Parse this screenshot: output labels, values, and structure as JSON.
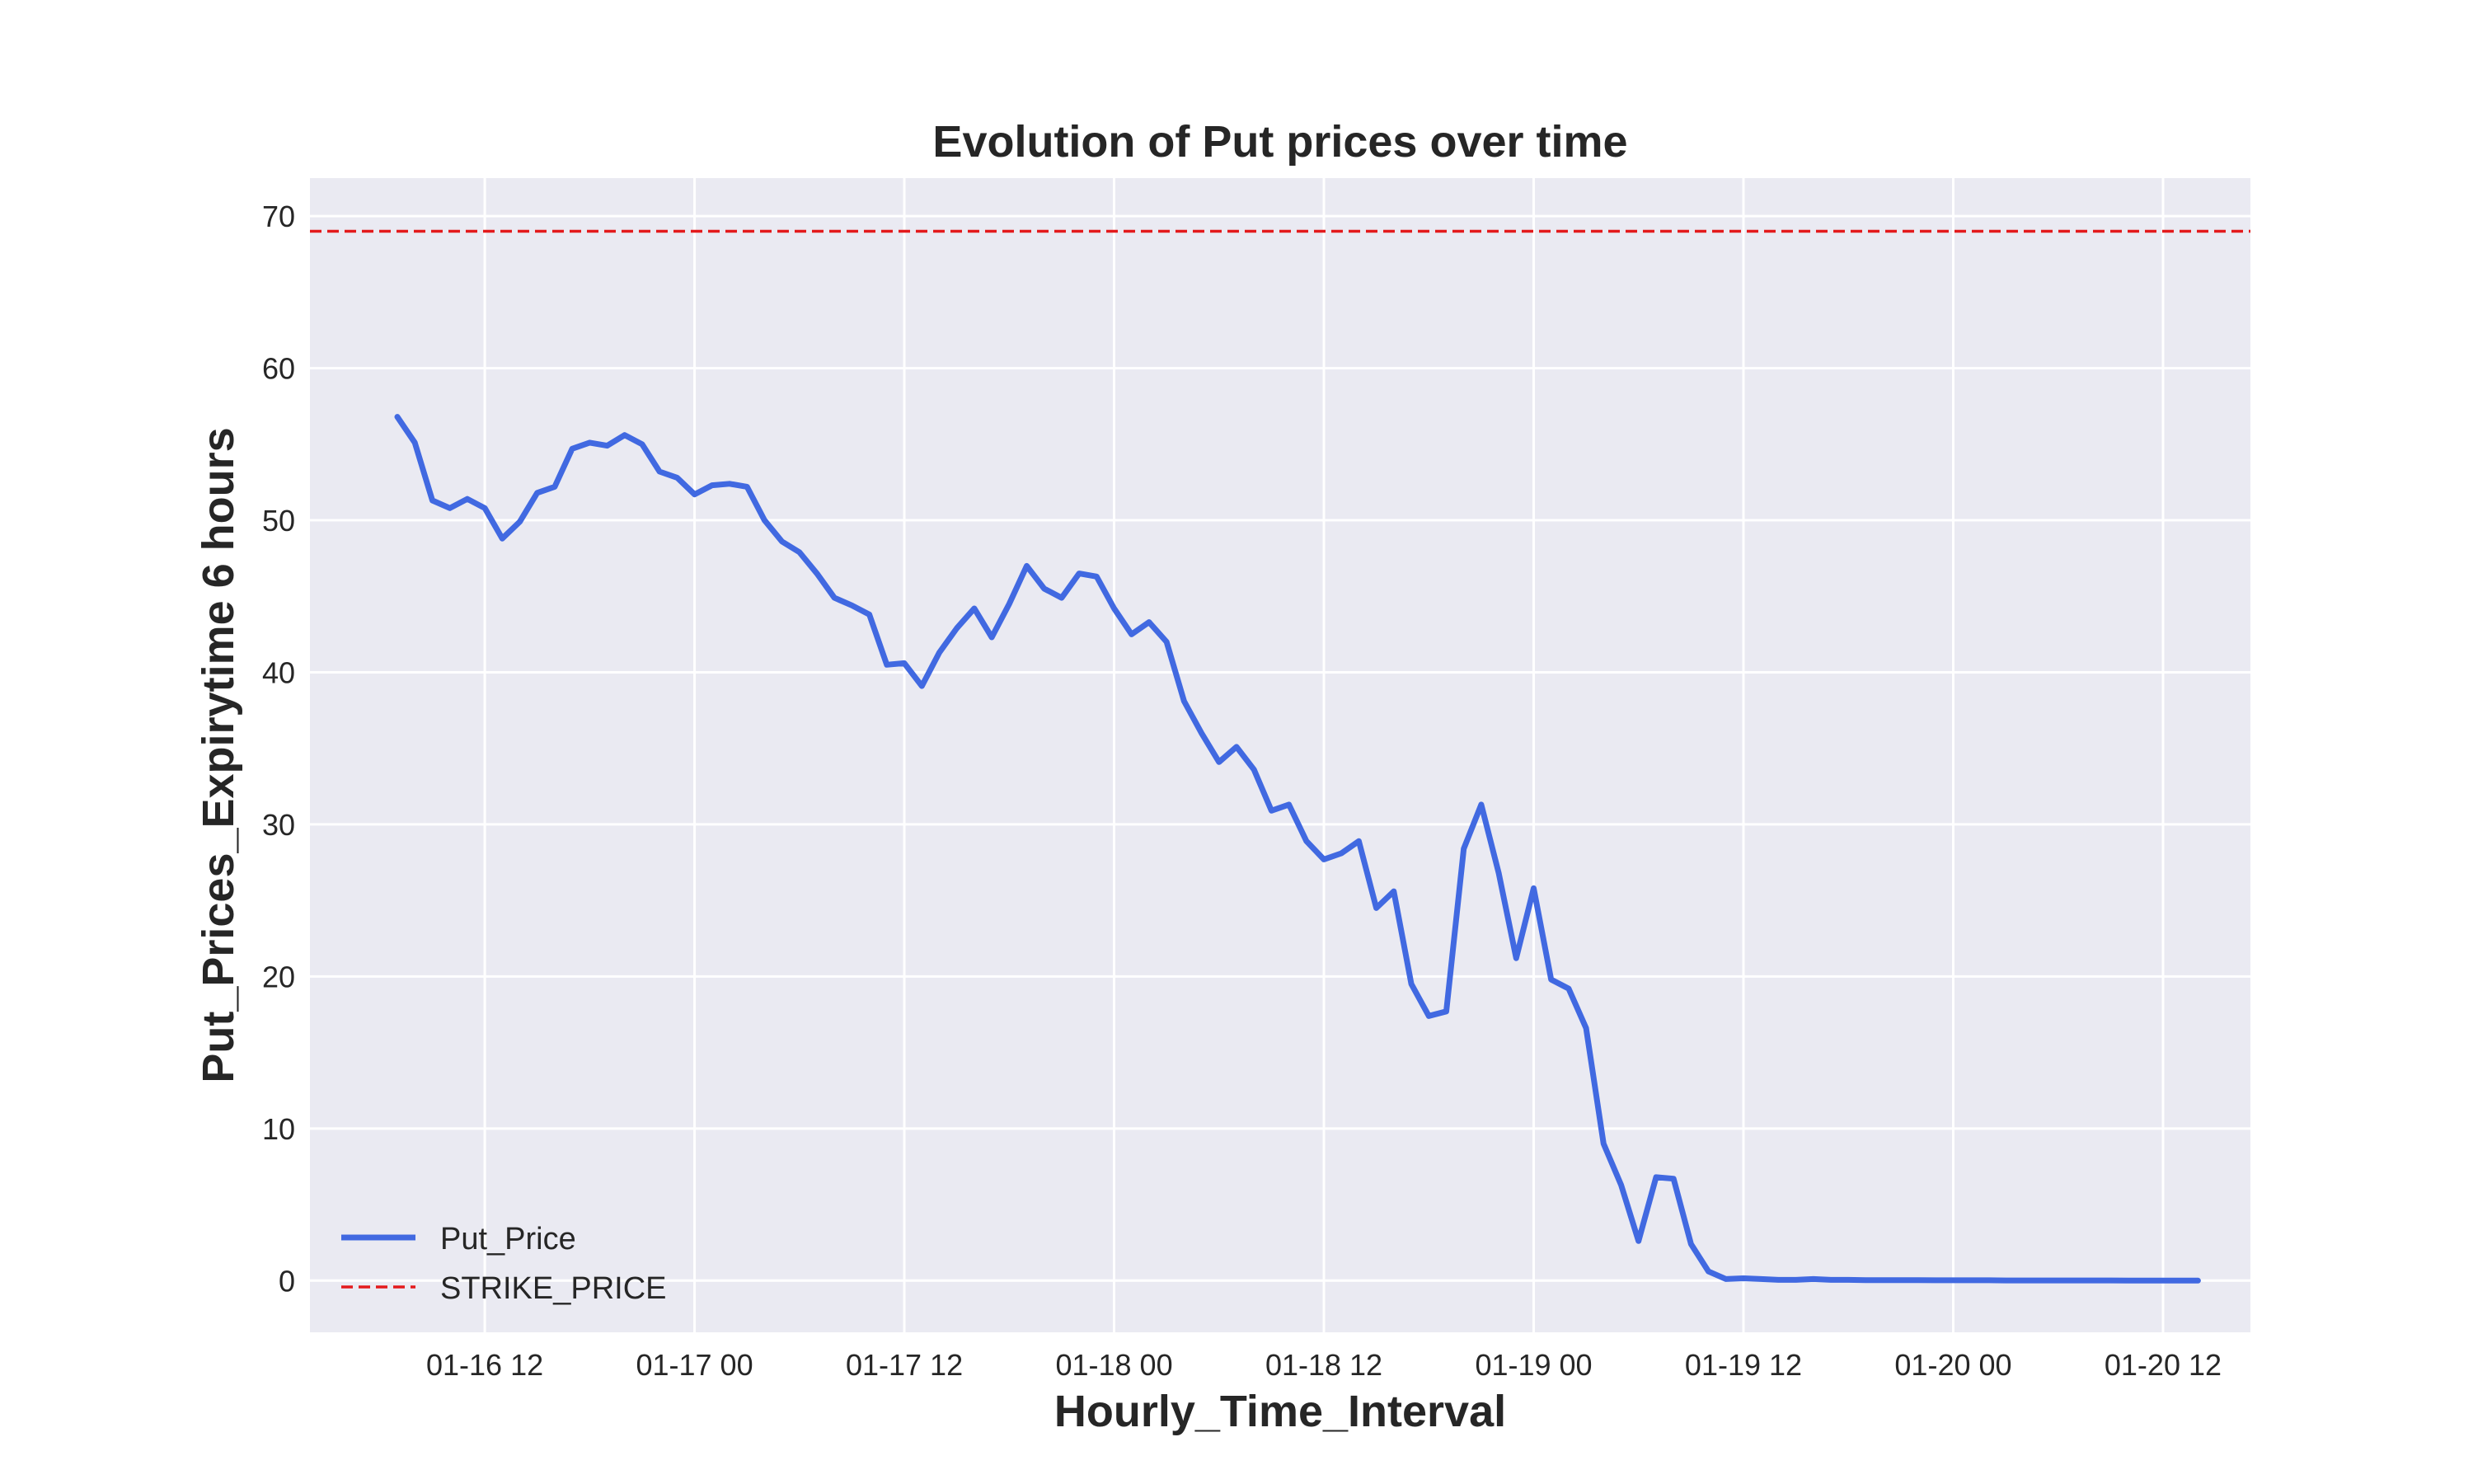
{
  "chart_data": {
    "type": "line",
    "title": "Evolution of Put prices over time",
    "xlabel": "Hourly_Time_Interval",
    "ylabel": "Put_Prices_Expirytime 6 hours",
    "x_tick_labels": [
      "01-16 12",
      "01-17 00",
      "01-17 12",
      "01-18 00",
      "01-18 12",
      "01-19 00",
      "01-19 12",
      "01-20 00",
      "01-20 12"
    ],
    "x_tick_hours": [
      12,
      24,
      36,
      48,
      60,
      72,
      84,
      96,
      108
    ],
    "xlim_hours": [
      2.0,
      113.0
    ],
    "y_ticks": [
      0,
      10,
      20,
      30,
      40,
      50,
      60,
      70
    ],
    "ylim": [
      -3.4,
      72.5
    ],
    "grid": true,
    "legend_position": "lower-left",
    "colors": {
      "put_price": "#4169e1",
      "strike_price": "#e31a1c",
      "plot_bg": "#eaeaf2",
      "grid": "#ffffff"
    },
    "x_hours": [
      7,
      8,
      9,
      10,
      11,
      12,
      13,
      14,
      15,
      16,
      17,
      18,
      19,
      20,
      21,
      22,
      23,
      24,
      25,
      26,
      27,
      28,
      29,
      30,
      31,
      32,
      33,
      34,
      35,
      36,
      37,
      38,
      39,
      40,
      41,
      42,
      43,
      44,
      45,
      46,
      47,
      48,
      49,
      50,
      51,
      52,
      53,
      54,
      55,
      56,
      57,
      58,
      59,
      60,
      61,
      62,
      63,
      64,
      65,
      66,
      67,
      68,
      69,
      70,
      71,
      72,
      73,
      74,
      75,
      76,
      77,
      78,
      79,
      80,
      81,
      82,
      83,
      84,
      85,
      86,
      87,
      88,
      89,
      90,
      91,
      92,
      93,
      94,
      95,
      96,
      97,
      98,
      99,
      100,
      101,
      102,
      103,
      104,
      105,
      106,
      107,
      108,
      109,
      110
    ],
    "series": [
      {
        "name": "Put_Price",
        "style": "solid",
        "values": [
          56.8,
          55.1,
          51.3,
          50.8,
          51.4,
          50.8,
          48.8,
          49.9,
          51.8,
          52.2,
          54.7,
          55.1,
          54.9,
          55.6,
          55.0,
          53.2,
          52.8,
          51.7,
          52.3,
          52.4,
          52.2,
          50.0,
          48.6,
          47.9,
          46.5,
          44.9,
          44.4,
          43.8,
          40.5,
          40.6,
          39.1,
          41.3,
          42.9,
          44.2,
          42.3,
          44.5,
          47.0,
          45.5,
          44.9,
          46.5,
          46.3,
          44.2,
          42.5,
          43.3,
          42.0,
          38.1,
          36.0,
          34.1,
          35.1,
          33.6,
          30.9,
          31.3,
          28.9,
          27.7,
          28.1,
          28.9,
          24.5,
          25.6,
          19.5,
          17.4,
          17.7,
          28.4,
          31.3,
          26.8,
          21.2,
          25.8,
          19.8,
          19.2,
          16.6,
          9.0,
          6.3,
          2.6,
          6.8,
          6.7,
          2.4,
          0.6,
          0.1,
          0.15,
          0.1,
          0.05,
          0.05,
          0.1,
          0.05,
          0.05,
          0.03,
          0.03,
          0.03,
          0.03,
          0.02,
          0.02,
          0.02,
          0.02,
          0.01,
          0.01,
          0.01,
          0.01,
          0.01,
          0.01,
          0.01,
          0.0,
          0.0,
          0.0,
          0.0,
          0.0
        ]
      },
      {
        "name": "STRIKE_PRICE",
        "style": "dashed",
        "constant": 69.0
      }
    ]
  }
}
